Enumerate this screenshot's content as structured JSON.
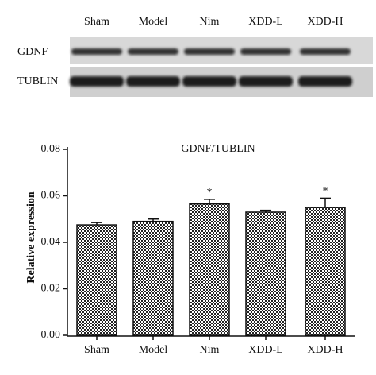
{
  "blot": {
    "lanes": [
      "Sham",
      "Model",
      "Nim",
      "XDD-L",
      "XDD-H"
    ],
    "rows": [
      "GDNF",
      "TUBLIN"
    ]
  },
  "chart_data": {
    "type": "bar",
    "title": "GDNF/TUBLIN",
    "y_label": "Relative expression",
    "categories": [
      "Sham",
      "Model",
      "Nim",
      "XDD-L",
      "XDD-H"
    ],
    "values": [
      0.0475,
      0.049,
      0.0565,
      0.053,
      0.055
    ],
    "errors": [
      0.001,
      0.001,
      0.002,
      0.0008,
      0.004
    ],
    "significance": [
      null,
      null,
      "*",
      null,
      "*"
    ],
    "ylim": [
      0,
      0.08
    ],
    "yticks": [
      {
        "value": 0,
        "label": "0.00"
      },
      {
        "value": 0.02,
        "label": "0.02"
      },
      {
        "value": 0.04,
        "label": "0.04"
      },
      {
        "value": 0.06,
        "label": "0.06"
      },
      {
        "value": 0.08,
        "label": "0.08"
      }
    ],
    "color": "checkered"
  }
}
